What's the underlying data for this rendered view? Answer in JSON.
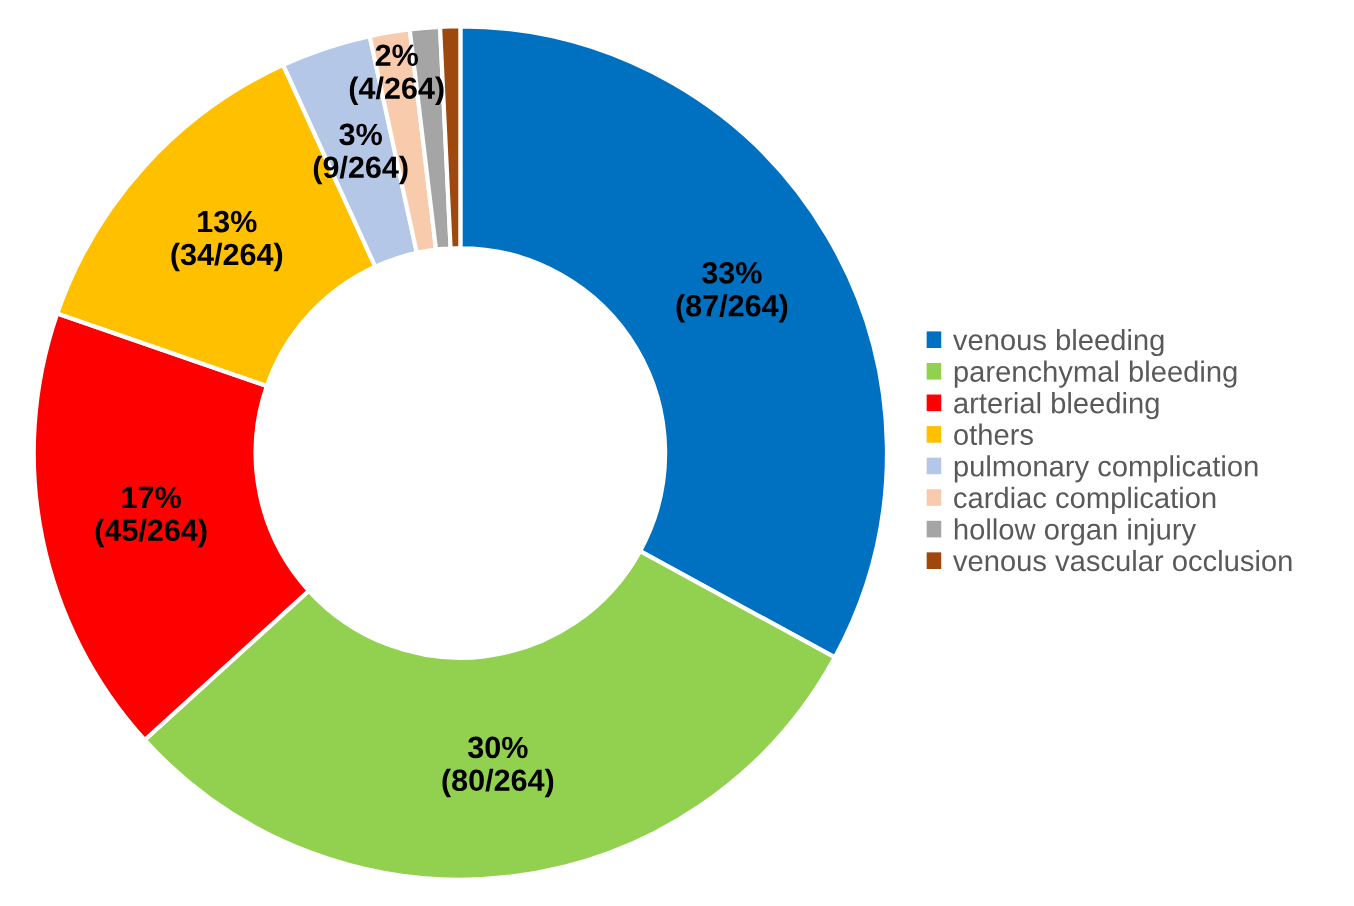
{
  "chart_data": {
    "type": "donut",
    "categories": [
      "venous bleeding",
      "parenchymal bleeding",
      "arterial bleeding",
      "others",
      "pulmonary complication",
      "cardiac complication",
      "hollow organ injury",
      "venous vascular occlusion"
    ],
    "values": [
      87,
      80,
      45,
      34,
      9,
      4,
      3,
      2
    ],
    "colors": [
      "#0070c0",
      "#92d050",
      "#ff0000",
      "#ffc000",
      "#b4c7e7",
      "#f8cbad",
      "#a5a5a5",
      "#9e480e"
    ],
    "value_labels": [
      "33%\n(87/264)",
      "30%\n(80/264)",
      "17%\n(45/264)",
      "13%\n(34/264)",
      "3%\n(9/264)",
      "2%\n(4/264)",
      null,
      null
    ],
    "legend": "right"
  }
}
